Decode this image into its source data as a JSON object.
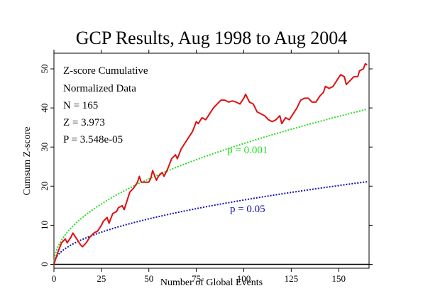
{
  "chart_data": {
    "type": "line",
    "title": "GCP Results, Aug 1998 to Aug 2004",
    "xlabel": "Number of Global Events",
    "ylabel": "Cumsum Z-score",
    "xlim": [
      0,
      166
    ],
    "ylim": [
      -1,
      54
    ],
    "x_ticks": [
      0,
      25,
      50,
      75,
      100,
      125,
      150
    ],
    "y_ticks": [
      0,
      10,
      20,
      30,
      40,
      50
    ],
    "grid": false,
    "stats": [
      "Z-score Cumulative",
      "Normalized Data",
      "N = 165",
      "Z = 3.973",
      "P = 3.548e-05"
    ],
    "colors": {
      "cumsum": "#e01010",
      "p001": "#22dd22",
      "p05": "#1010b0",
      "baseline": "#000000"
    },
    "series": [
      {
        "key": "cumsum",
        "points": [
          [
            0,
            0
          ],
          [
            2,
            3
          ],
          [
            4,
            5.5
          ],
          [
            6,
            6.5
          ],
          [
            7,
            5.5
          ],
          [
            9,
            7
          ],
          [
            10,
            8
          ],
          [
            12,
            6.5
          ],
          [
            14,
            5
          ],
          [
            15,
            4.5
          ],
          [
            17,
            5.5
          ],
          [
            19,
            7
          ],
          [
            21,
            8
          ],
          [
            23,
            8.5
          ],
          [
            25,
            10
          ],
          [
            26,
            11
          ],
          [
            28,
            12
          ],
          [
            29,
            10.5
          ],
          [
            31,
            13
          ],
          [
            33,
            13.5
          ],
          [
            34,
            14.5
          ],
          [
            36,
            15
          ],
          [
            37,
            14
          ],
          [
            39,
            17
          ],
          [
            40,
            18.5
          ],
          [
            42,
            19.5
          ],
          [
            44,
            21
          ],
          [
            45,
            22.5
          ],
          [
            46,
            21
          ],
          [
            48,
            21
          ],
          [
            50,
            21
          ],
          [
            51,
            22
          ],
          [
            52,
            24
          ],
          [
            54,
            21.5
          ],
          [
            55,
            22.5
          ],
          [
            57,
            23.5
          ],
          [
            58,
            22.5
          ],
          [
            60,
            24.5
          ],
          [
            62,
            27
          ],
          [
            64,
            28
          ],
          [
            65,
            27
          ],
          [
            67,
            29.5
          ],
          [
            69,
            31
          ],
          [
            71,
            32.5
          ],
          [
            73,
            34
          ],
          [
            75,
            36.5
          ],
          [
            76,
            36
          ],
          [
            78,
            37.5
          ],
          [
            80,
            37
          ],
          [
            82,
            38.5
          ],
          [
            84,
            40
          ],
          [
            86,
            41
          ],
          [
            88,
            42
          ],
          [
            90,
            42
          ],
          [
            92,
            41.5
          ],
          [
            94,
            41.8
          ],
          [
            96,
            41.5
          ],
          [
            98,
            41
          ],
          [
            100,
            42.5
          ],
          [
            101,
            43.5
          ],
          [
            103,
            41.5
          ],
          [
            105,
            41
          ],
          [
            107,
            39
          ],
          [
            109,
            38.5
          ],
          [
            111,
            38
          ],
          [
            113,
            37
          ],
          [
            115,
            36.5
          ],
          [
            117,
            37
          ],
          [
            119,
            38
          ],
          [
            120,
            36
          ],
          [
            122,
            37.5
          ],
          [
            124,
            37
          ],
          [
            126,
            38.5
          ],
          [
            128,
            40
          ],
          [
            130,
            42
          ],
          [
            132,
            42.5
          ],
          [
            134,
            42.5
          ],
          [
            136,
            41.5
          ],
          [
            138,
            41.5
          ],
          [
            140,
            43
          ],
          [
            142,
            44
          ],
          [
            143,
            45.5
          ],
          [
            145,
            45
          ],
          [
            147,
            45.5
          ],
          [
            149,
            47
          ],
          [
            151,
            48.5
          ],
          [
            153,
            48
          ],
          [
            154,
            46
          ],
          [
            156,
            47
          ],
          [
            158,
            48
          ],
          [
            160,
            48
          ],
          [
            161,
            49.5
          ],
          [
            163,
            50
          ],
          [
            164,
            51.3
          ],
          [
            165,
            51
          ]
        ]
      },
      {
        "key": "p001",
        "curve": "sqrt",
        "k": 3.09,
        "label": "p = 0.001",
        "label_at": [
          102,
          28.4
        ]
      },
      {
        "key": "p05",
        "curve": "sqrt",
        "k": 1.645,
        "label": "p = 0.05",
        "label_at": [
          102,
          13.3
        ]
      }
    ]
  }
}
